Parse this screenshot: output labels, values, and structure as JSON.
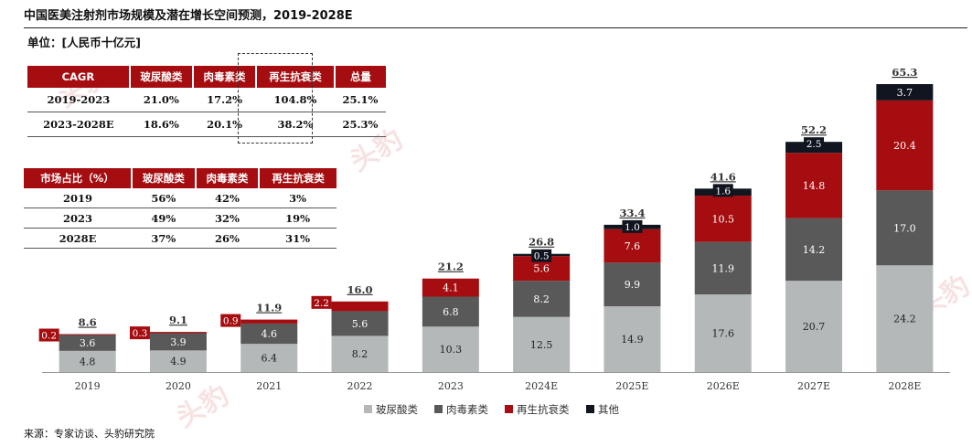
{
  "title": "中国医美注射剂市场规模及潜在增长空间预测，2019-2028E",
  "unit": "单位：[人民币十亿元]",
  "source": "来源：专家访谈、头豹研究院",
  "watermark": "头豹",
  "cagr_table": {
    "headers": [
      "CAGR",
      "玻尿酸类",
      "肉毒素类",
      "再生抗衰类",
      "总量"
    ],
    "rows": [
      [
        "2019-2023",
        "21.0%",
        "17.2%",
        "104.8%",
        "25.1%"
      ],
      [
        "2023-2028E",
        "18.6%",
        "20.1%",
        "38.2%",
        "25.3%"
      ]
    ]
  },
  "share_table": {
    "headers": [
      "市场占比（%）",
      "玻尿酸类",
      "肉毒素类",
      "再生抗衰类"
    ],
    "rows": [
      [
        "2019",
        "56%",
        "42%",
        "3%"
      ],
      [
        "2023",
        "49%",
        "32%",
        "19%"
      ],
      [
        "2028E",
        "37%",
        "26%",
        "31%"
      ]
    ]
  },
  "chart_data": {
    "type": "bar",
    "stacked": true,
    "categories": [
      "2019",
      "2020",
      "2021",
      "2022",
      "2023",
      "2024E",
      "2025E",
      "2026E",
      "2027E",
      "2028E"
    ],
    "series": [
      {
        "name": "玻尿酸类",
        "color": "#b4b8b9",
        "values": [
          4.8,
          4.9,
          6.4,
          8.2,
          10.3,
          12.5,
          14.9,
          17.6,
          20.7,
          24.2
        ]
      },
      {
        "name": "肉毒素类",
        "color": "#595959",
        "values": [
          3.6,
          3.9,
          4.6,
          5.6,
          6.8,
          8.2,
          9.9,
          11.9,
          14.2,
          17.0
        ]
      },
      {
        "name": "再生抗衰类",
        "color": "#a50d10",
        "values": [
          0.2,
          0.3,
          0.9,
          2.2,
          4.1,
          5.6,
          7.6,
          10.5,
          14.8,
          20.4
        ]
      },
      {
        "name": "其他",
        "color": "#10151f",
        "values": [
          null,
          null,
          null,
          null,
          null,
          0.5,
          1.0,
          1.6,
          2.5,
          3.7
        ]
      }
    ],
    "totals": [
      "8.6",
      "9.1",
      "11.9",
      "16.0",
      "21.2",
      "26.8",
      "33.4",
      "41.6",
      "52.2",
      "65.3"
    ],
    "value_labels": {
      "玻尿酸类": [
        "4.8",
        "4.9",
        "6.4",
        "8.2",
        "10.3",
        "12.5",
        "14.9",
        "17.6",
        "20.7",
        "24.2"
      ],
      "肉毒素类": [
        "3.6",
        "3.9",
        "4.6",
        "5.6",
        "6.8",
        "8.2",
        "9.9",
        "11.9",
        "14.2",
        "17.0"
      ],
      "再生抗衰类": [
        "0.2",
        "0.3",
        "0.9",
        "2.2",
        "4.1",
        "5.6",
        "7.6",
        "10.5",
        "14.8",
        "20.4"
      ],
      "其他": [
        "",
        "",
        "",
        "",
        "",
        "0.5",
        "1.0",
        "1.6",
        "2.5",
        "3.7"
      ]
    },
    "ylim": [
      0,
      65.3
    ],
    "legend_position": "bottom"
  }
}
